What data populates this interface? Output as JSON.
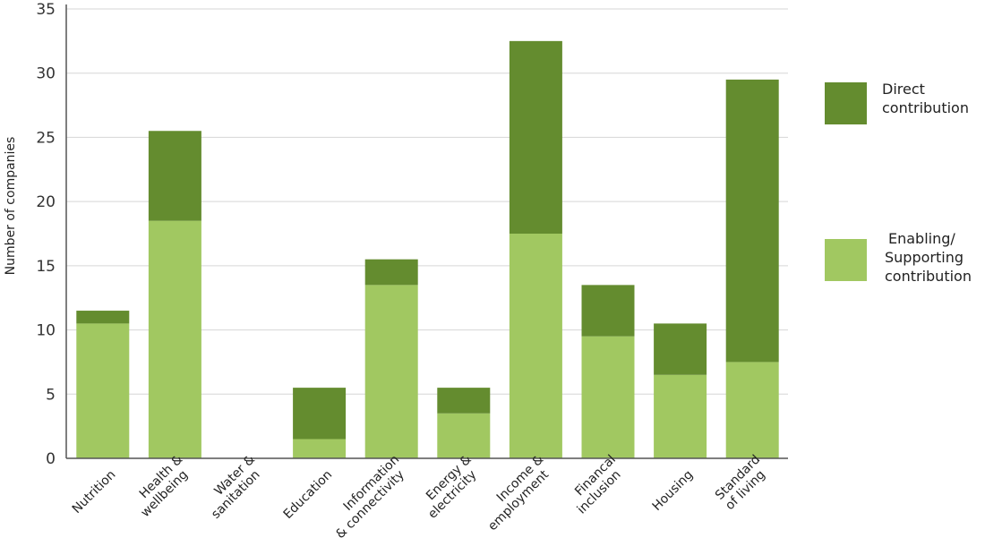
{
  "chart_data": {
    "type": "bar",
    "stacked": true,
    "ylabel": "Number of companies",
    "xlabel": "",
    "ylim": [
      0,
      35
    ],
    "yticks": [
      0,
      5,
      10,
      15,
      20,
      25,
      30,
      35
    ],
    "grid": true,
    "legend_position": "right",
    "categories": [
      [
        "Nutrition"
      ],
      [
        "Health &",
        "wellbeing"
      ],
      [
        "Water &",
        "sanitation"
      ],
      [
        "Education"
      ],
      [
        "Information",
        "& connectivity"
      ],
      [
        "Energy &",
        "electricity"
      ],
      [
        "Income &",
        "employment"
      ],
      [
        "Financal",
        "inclusion"
      ],
      [
        "Housing"
      ],
      [
        "Standard",
        "of living"
      ]
    ],
    "series": [
      {
        "name": "Enabling/ Supporting contribution",
        "legend_lines": [
          "Enabling/",
          "Supporting",
          "contribution"
        ],
        "color": "#a1c861",
        "values": [
          10.5,
          18.5,
          0,
          1.5,
          13.5,
          3.5,
          17.5,
          9.5,
          6.5,
          7.5
        ]
      },
      {
        "name": "Direct contribution",
        "legend_lines": [
          "Direct",
          "contribution"
        ],
        "color": "#648c2f",
        "values": [
          1,
          7,
          0,
          4,
          2,
          2,
          15,
          4,
          4,
          22
        ]
      }
    ]
  }
}
